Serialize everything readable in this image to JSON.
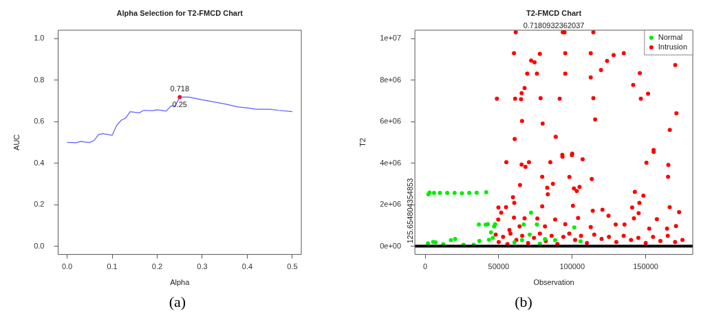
{
  "chart_data": [
    {
      "type": "line",
      "title": "Alpha Selection for T2-FMCD Chart",
      "xlabel": "Alpha",
      "ylabel": "AUC",
      "xlim": [
        -0.02,
        0.52
      ],
      "ylim": [
        -0.04,
        1.04
      ],
      "xticks": [
        {
          "value": 0,
          "label": "0.0"
        },
        0.1,
        0.2,
        0.3,
        0.4,
        0.5
      ],
      "yticks": [
        {
          "value": 0,
          "label": "0.0"
        },
        0.2,
        0.4,
        0.6,
        0.8,
        {
          "value": 1,
          "label": "1.0"
        }
      ],
      "grid": false,
      "legend": false,
      "marker": "circle",
      "series": [
        {
          "marker": "none",
          "color": "#5a5aff",
          "x": [
            0,
            0.02,
            0.03,
            0.05,
            0.06,
            0.07,
            0.08,
            0.1,
            0.11,
            0.12,
            0.13,
            0.14,
            0.16,
            0.17,
            0.19,
            0.2,
            0.22,
            0.23,
            0.24,
            0.25,
            0.26,
            0.27,
            0.3,
            0.35,
            0.38,
            0.4,
            0.42,
            0.45,
            0.47,
            0.5
          ],
          "values": [
            0.5,
            0.498,
            0.504,
            0.499,
            0.509,
            0.538,
            0.542,
            0.534,
            0.582,
            0.606,
            0.617,
            0.648,
            0.642,
            0.654,
            0.653,
            0.657,
            0.65,
            0.674,
            0.676,
            0.718,
            0.718,
            0.718,
            0.705,
            0.685,
            0.67,
            0.666,
            0.659,
            0.659,
            0.654,
            0.648
          ]
        },
        {
          "type": "scatter",
          "color": "#ff0000",
          "x": [
            0.25
          ],
          "values": [
            0.718
          ]
        }
      ],
      "annotations": [
        {
          "text": "0.718",
          "x": 0.25,
          "y": 0.718
        },
        {
          "text": "0.25",
          "x": 0.25,
          "y": 0.718
        },
        "(a)"
      ]
    },
    {
      "type": "scatter",
      "title": "T2-FMCD Chart",
      "xlabel": "Observation",
      "ylabel": "T2",
      "xlim": [
        -7000,
        182000
      ],
      "ylim": [
        -400000,
        10400000
      ],
      "xticks": [
        0,
        50000,
        100000,
        150000
      ],
      "yticks": [
        {
          "value": 0,
          "label": "0e+00"
        },
        {
          "value": 2000000,
          "label": "2e+06"
        },
        {
          "value": 4000000,
          "label": "4e+06"
        },
        {
          "value": 6000000,
          "label": "6e+06"
        },
        {
          "value": 8000000,
          "label": "8e+06"
        },
        {
          "value": 10000000,
          "label": "1e+07"
        }
      ],
      "grid": false,
      "legend": "top right",
      "marker": "circle",
      "series": [
        {
          "name": "Normal",
          "color": "#00ee00",
          "x": [
            2200,
            3000,
            6000,
            10000,
            15000,
            20000,
            25000,
            30000,
            35000,
            41500,
            1900,
            5400,
            7100,
            12300,
            17500,
            20400,
            26100,
            33000,
            36500,
            36900,
            41200,
            42600,
            43400,
            44800,
            46900,
            47600,
            46000,
            72000,
            67100,
            76000,
            101400,
            81500,
            65900,
            71100,
            105700,
            88400,
            60700,
            78000
          ],
          "values": [
            2500000,
            2580000,
            2560000,
            2560000,
            2560000,
            2560000,
            2550000,
            2560000,
            2570000,
            2600000,
            130000,
            200000,
            180000,
            90000,
            290000,
            350000,
            70000,
            70000,
            1040000,
            250000,
            1030000,
            1060000,
            310000,
            660000,
            950000,
            1060000,
            400000,
            1610000,
            1040000,
            1040000,
            900000,
            340000,
            290000,
            550000,
            230000,
            290000,
            180000,
            120000
          ]
        },
        {
          "name": "Intrusion",
          "color": "#ff0000",
          "x": [
            61600,
            93600,
            94800,
            114400,
            60400,
            78000,
            95300,
            112600,
            128200,
            135100,
            72100,
            74400,
            123700,
            119600,
            69400,
            76000,
            95300,
            112600,
            146000,
            170100,
            141500,
            67600,
            65600,
            48800,
            61200,
            65200,
            78500,
            91500,
            114400,
            151600,
            146700,
            170900,
            65900,
            79900,
            115600,
            166400,
            60900,
            88800,
            155400,
            93300,
            100000,
            155400,
            93400,
            99800,
            55200,
            65600,
            68200,
            70600,
            85100,
            107100,
            150500,
            165400,
            165200,
            79600,
            98100,
            113300,
            86900,
            64500,
            83000,
            101200,
            105000,
            103100,
            142600,
            148400,
            83400,
            59700,
            145700,
            60600,
            79600,
            100500,
            166300,
            140800,
            49800,
            55000,
            172700,
            145200,
            51700,
            114000,
            120600,
            60400,
            67600,
            76300,
            88400,
            104000,
            142000,
            157600,
            124700,
            49700,
            129600,
            135600,
            170600,
            64200,
            81500,
            95300,
            112600,
            164500,
            152400,
            57300,
            48000,
            50000,
            53000,
            56000,
            58000,
            62000,
            66000,
            70000,
            74000,
            78000,
            82000,
            86000,
            90000,
            94000,
            98000,
            102000,
            106000,
            110000,
            115000,
            120000,
            125000,
            130000,
            135000,
            140000,
            145000,
            150000,
            155000,
            160000,
            165000,
            170000,
            175000
          ],
          "values": [
            10300000,
            10300000,
            10300000,
            10300000,
            9290000,
            9260000,
            9290000,
            9290000,
            9200000,
            9290000,
            8940000,
            8850000,
            8920000,
            8480000,
            8310000,
            8310000,
            8310000,
            8130000,
            8330000,
            8720000,
            7760000,
            7610000,
            7370000,
            7100000,
            7100000,
            7080000,
            7130000,
            7100000,
            7130000,
            7340000,
            7100000,
            6400000,
            6030000,
            5900000,
            6100000,
            5600000,
            5160000,
            5270000,
            4630000,
            4400000,
            4460000,
            4540000,
            4310000,
            4380000,
            4040000,
            3930000,
            3820000,
            4040000,
            4040000,
            4180000,
            4020000,
            3910000,
            3340000,
            3340000,
            3330000,
            3230000,
            3000000,
            2940000,
            2810000,
            2780000,
            2850000,
            2650000,
            2610000,
            2430000,
            2500000,
            2360000,
            2080000,
            2080000,
            1920000,
            1940000,
            1880000,
            1860000,
            1860000,
            1880000,
            1640000,
            1590000,
            1610000,
            1700000,
            1750000,
            1370000,
            1340000,
            1330000,
            1280000,
            1360000,
            1340000,
            1300000,
            1460000,
            1280000,
            1040000,
            1040000,
            970000,
            950000,
            950000,
            1060000,
            920000,
            840000,
            840000,
            780000,
            550000,
            200000,
            450000,
            100000,
            600000,
            300000,
            500000,
            150000,
            400000,
            600000,
            250000,
            500000,
            100000,
            450000,
            600000,
            300000,
            500000,
            150000,
            550000,
            350000,
            450000,
            200000,
            500000,
            300000,
            400000,
            150000,
            450000,
            250000,
            500000,
            200000,
            300000
          ]
        }
      ],
      "ref_lines": [
        {
          "axis": "y",
          "value": 125.654804354853,
          "label": "125.654804354853",
          "color": "#000000"
        }
      ],
      "annotations": [
        "0.7180932362037",
        "(b)"
      ]
    }
  ]
}
